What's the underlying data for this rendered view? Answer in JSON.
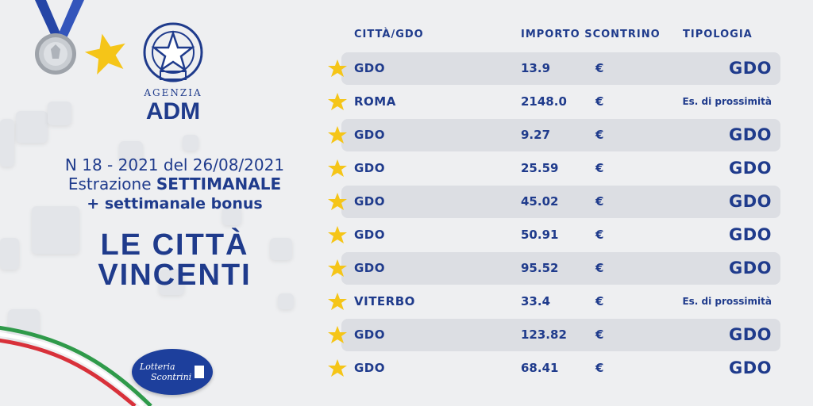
{
  "agency": {
    "label_top": "AGENZIA",
    "label_main": "ADM"
  },
  "draw": {
    "line1": "N 18 - 2021 del 26/08/2021",
    "line2_prefix": "Estrazione ",
    "line2_bold": "SETTIMANALE",
    "line3": "+ settimanale bonus"
  },
  "title": {
    "line1": "LE CITTÀ",
    "line2": "VINCENTI"
  },
  "logo": {
    "line1": "Lotteria",
    "line2": "Scontrini"
  },
  "table": {
    "headers": {
      "city": "CITTÀ/GDO",
      "amount": "IMPORTO SCONTRINO",
      "type": "TIPOLOGIA"
    },
    "rows": [
      {
        "city": "GDO",
        "amount": "13.9",
        "currency": "€",
        "type": "GDO"
      },
      {
        "city": "ROMA",
        "amount": "2148.0",
        "currency": "€",
        "type": "Es. di prossimità"
      },
      {
        "city": "GDO",
        "amount": "9.27",
        "currency": "€",
        "type": "GDO"
      },
      {
        "city": "GDO",
        "amount": "25.59",
        "currency": "€",
        "type": "GDO"
      },
      {
        "city": "GDO",
        "amount": "45.02",
        "currency": "€",
        "type": "GDO"
      },
      {
        "city": "GDO",
        "amount": "50.91",
        "currency": "€",
        "type": "GDO"
      },
      {
        "city": "GDO",
        "amount": "95.52",
        "currency": "€",
        "type": "GDO"
      },
      {
        "city": "VITERBO",
        "amount": "33.4",
        "currency": "€",
        "type": "Es. di prossimità"
      },
      {
        "city": "GDO",
        "amount": "123.82",
        "currency": "€",
        "type": "GDO"
      },
      {
        "city": "GDO",
        "amount": "68.41",
        "currency": "€",
        "type": "GDO"
      }
    ]
  },
  "colors": {
    "brand_blue": "#1f3b8c",
    "star_yellow": "#f5c518",
    "row_shade": "#dcdee3"
  }
}
